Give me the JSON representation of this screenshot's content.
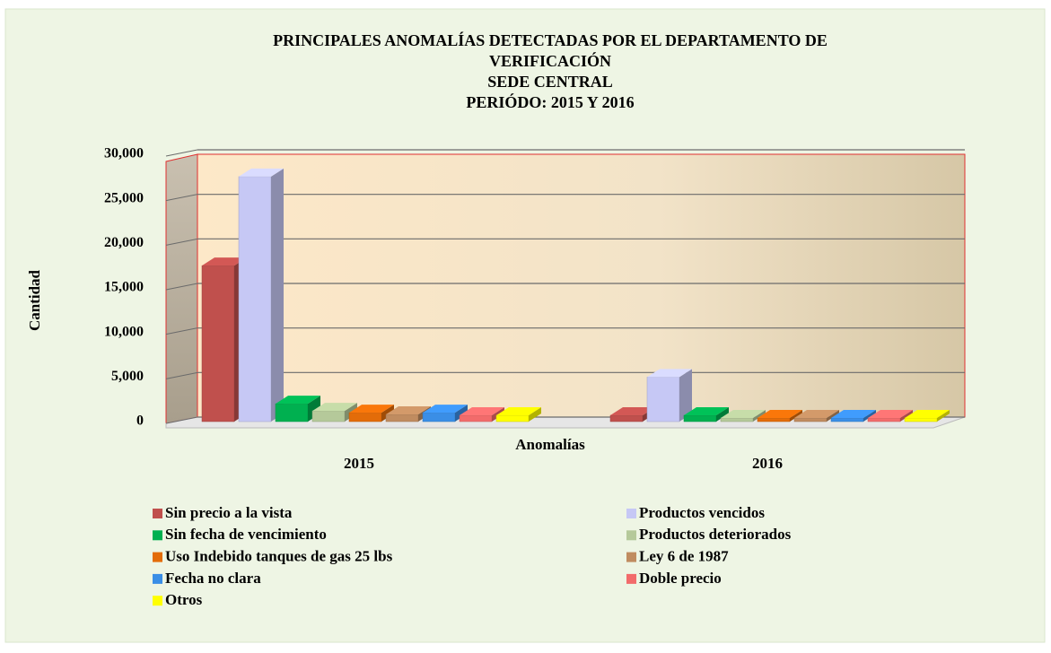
{
  "chart_data": {
    "type": "bar3d",
    "title": [
      "PRINCIPALES  ANOMALÍAS  DETECTADAS  POR EL DEPARTAMENTO  DE",
      "VERIFICACIÓN",
      "SEDE CENTRAL",
      "PERIÓDO:  2015 Y 2016"
    ],
    "x_label": "Anomalías",
    "y_label": "Cantidad",
    "categories": [
      "2015",
      "2016"
    ],
    "series": [
      {
        "name": "Sin precio a la vista",
        "color": "#c0504d",
        "values": [
          17500,
          700
        ]
      },
      {
        "name": "Productos vencidos",
        "color": "#c6c8f5",
        "values": [
          27500,
          5000
        ]
      },
      {
        "name": "Sin fecha de vencimiento",
        "color": "#00b050",
        "values": [
          2000,
          700
        ]
      },
      {
        "name": "Productos deteriorados",
        "color": "#b5c99a",
        "values": [
          1200,
          400
        ]
      },
      {
        "name": "Uso Indebido tanques de gas 25 lbs",
        "color": "#e36c09",
        "values": [
          1000,
          400
        ]
      },
      {
        "name": "Ley 6 de 1987",
        "color": "#c08c60",
        "values": [
          800,
          400
        ]
      },
      {
        "name": "Fecha no clara",
        "color": "#3a8ee6",
        "values": [
          1000,
          400
        ]
      },
      {
        "name": "Doble precio",
        "color": "#f26b6b",
        "values": [
          700,
          400
        ]
      },
      {
        "name": "Otros",
        "color": "#ffff00",
        "values": [
          700,
          400
        ]
      }
    ],
    "ylim": [
      0,
      30000
    ],
    "yticks": [
      0,
      {
        "value": 5000,
        "label": "5,000"
      },
      {
        "value": 10000,
        "label": "10,000"
      },
      {
        "value": 15000,
        "label": "15,000"
      },
      {
        "value": 20000,
        "label": "20,000"
      },
      {
        "value": 25000,
        "label": "25,000"
      },
      {
        "value": 30000,
        "label": "30,000"
      }
    ],
    "grid": true
  }
}
